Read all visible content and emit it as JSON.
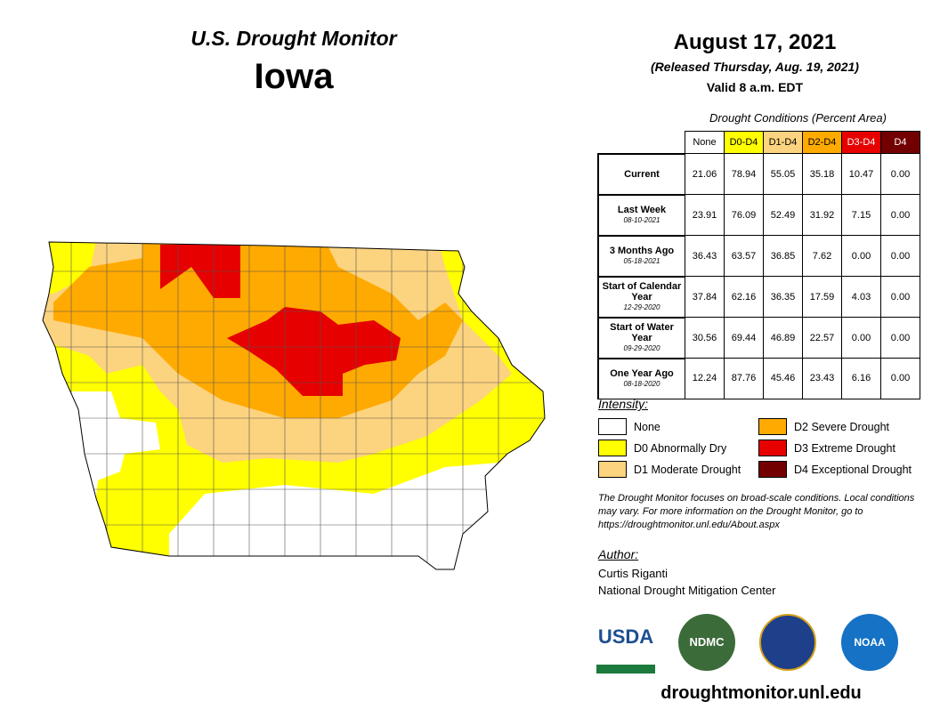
{
  "header": {
    "title": "U.S. Drought Monitor",
    "state": "Iowa"
  },
  "date": {
    "title": "August 17, 2021",
    "released": "(Released Thursday, Aug. 19, 2021)",
    "valid": "Valid 8 a.m. EDT"
  },
  "table": {
    "caption": "Drought Conditions (Percent Area)",
    "columns": [
      {
        "label": "None",
        "color": "#ffffff",
        "text": "#000000"
      },
      {
        "label": "D0-D4",
        "color": "#ffff00",
        "text": "#000000"
      },
      {
        "label": "D1-D4",
        "color": "#fcd37f",
        "text": "#000000"
      },
      {
        "label": "D2-D4",
        "color": "#ffaa00",
        "text": "#000000"
      },
      {
        "label": "D3-D4",
        "color": "#e60000",
        "text": "#ffffff"
      },
      {
        "label": "D4",
        "color": "#730000",
        "text": "#ffffff"
      }
    ],
    "rows": [
      {
        "label": "Current",
        "values": [
          "21.06",
          "78.94",
          "55.05",
          "35.18",
          "10.47",
          "0.00"
        ]
      },
      {
        "label": "Last Week",
        "date": "08-10-2021",
        "values": [
          "23.91",
          "76.09",
          "52.49",
          "31.92",
          "7.15",
          "0.00"
        ]
      },
      {
        "label": "3 Months Ago",
        "date": "05-18-2021",
        "values": [
          "36.43",
          "63.57",
          "36.85",
          "7.62",
          "0.00",
          "0.00"
        ]
      },
      {
        "label": "Start of Calendar Year",
        "date": "12-29-2020",
        "values": [
          "37.84",
          "62.16",
          "36.35",
          "17.59",
          "4.03",
          "0.00"
        ]
      },
      {
        "label": "Start of Water Year",
        "date": "09-29-2020",
        "values": [
          "30.56",
          "69.44",
          "46.89",
          "22.57",
          "0.00",
          "0.00"
        ]
      },
      {
        "label": "One Year Ago",
        "date": "08-18-2020",
        "values": [
          "12.24",
          "87.76",
          "45.46",
          "23.43",
          "6.16",
          "0.00"
        ]
      }
    ]
  },
  "legend": {
    "title": "Intensity:",
    "items": [
      {
        "name": "None",
        "color": "#ffffff"
      },
      {
        "name": "D0 Abnormally Dry",
        "color": "#ffff00"
      },
      {
        "name": "D1 Moderate Drought",
        "color": "#fcd37f"
      },
      {
        "name": "D2 Severe Drought",
        "color": "#ffaa00"
      },
      {
        "name": "D3 Extreme Drought",
        "color": "#e60000"
      },
      {
        "name": "D4 Exceptional Drought",
        "color": "#730000"
      }
    ]
  },
  "note": "The Drought Monitor focuses on broad-scale conditions. Local conditions may vary. For more information on the Drought Monitor, go to https://droughtmonitor.unl.edu/About.aspx",
  "author": {
    "label": "Author:",
    "name": "Curtis Riganti",
    "org": "National Drought Mitigation Center"
  },
  "logos": [
    "USDA",
    "NDMC",
    "NOAA"
  ],
  "url": "droughtmonitor.unl.edu"
}
